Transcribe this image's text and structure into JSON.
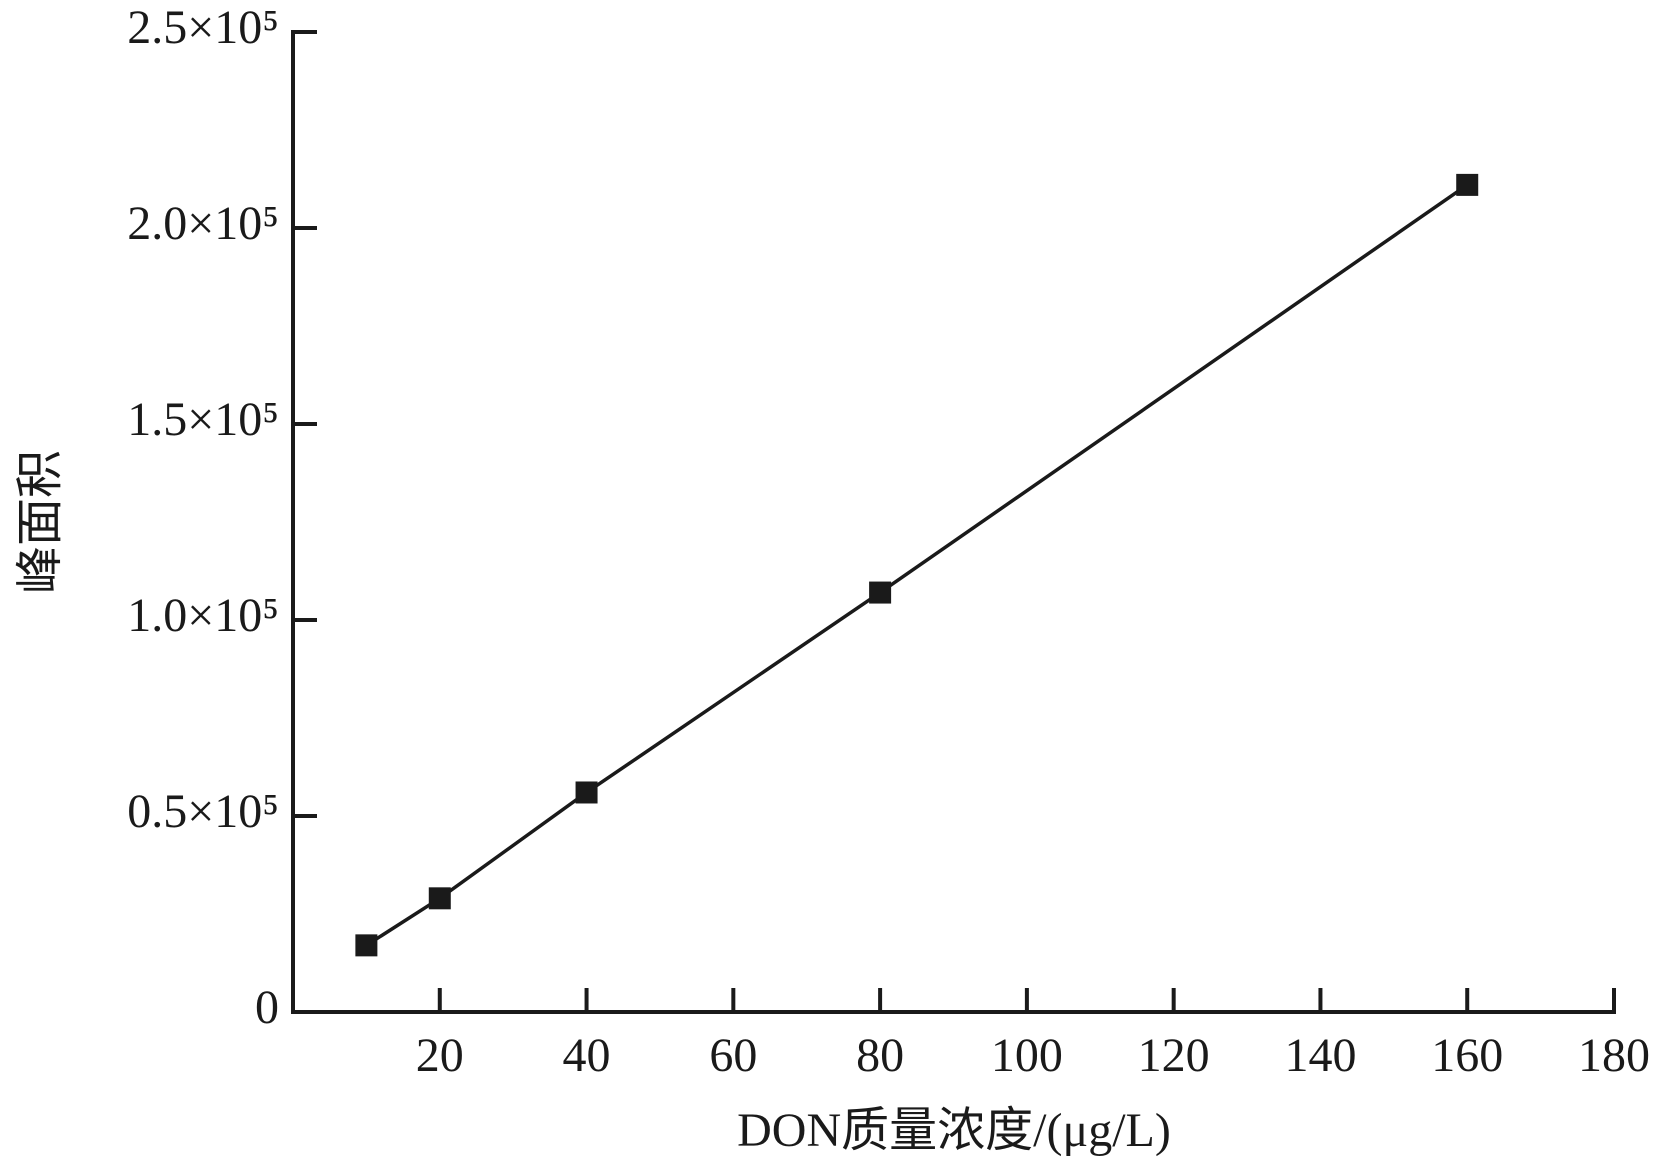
{
  "chart_data": {
    "type": "line",
    "x_label": "DON质量浓度/(μg/L)",
    "y_label": "峰面积",
    "x": [
      10,
      20,
      40,
      80,
      160
    ],
    "series": [
      {
        "color": "#1a1a1a",
        "values": [
          17000,
          29000,
          56000,
          107000,
          211000
        ]
      }
    ],
    "xlim": [
      0,
      180
    ],
    "xticks": [
      20,
      40,
      60,
      80,
      100,
      120,
      140,
      160,
      180
    ],
    "ylim": [
      0,
      250000
    ],
    "yticks": [
      0,
      {
        "value": 50000,
        "label": "0.5×10⁵"
      },
      {
        "value": 100000,
        "label": "1.0×10⁵"
      },
      {
        "value": 150000,
        "label": "1.5×10⁵"
      },
      {
        "value": 200000,
        "label": "2.0×10⁵"
      },
      {
        "value": 250000,
        "label": "2.5×10⁵"
      }
    ]
  }
}
